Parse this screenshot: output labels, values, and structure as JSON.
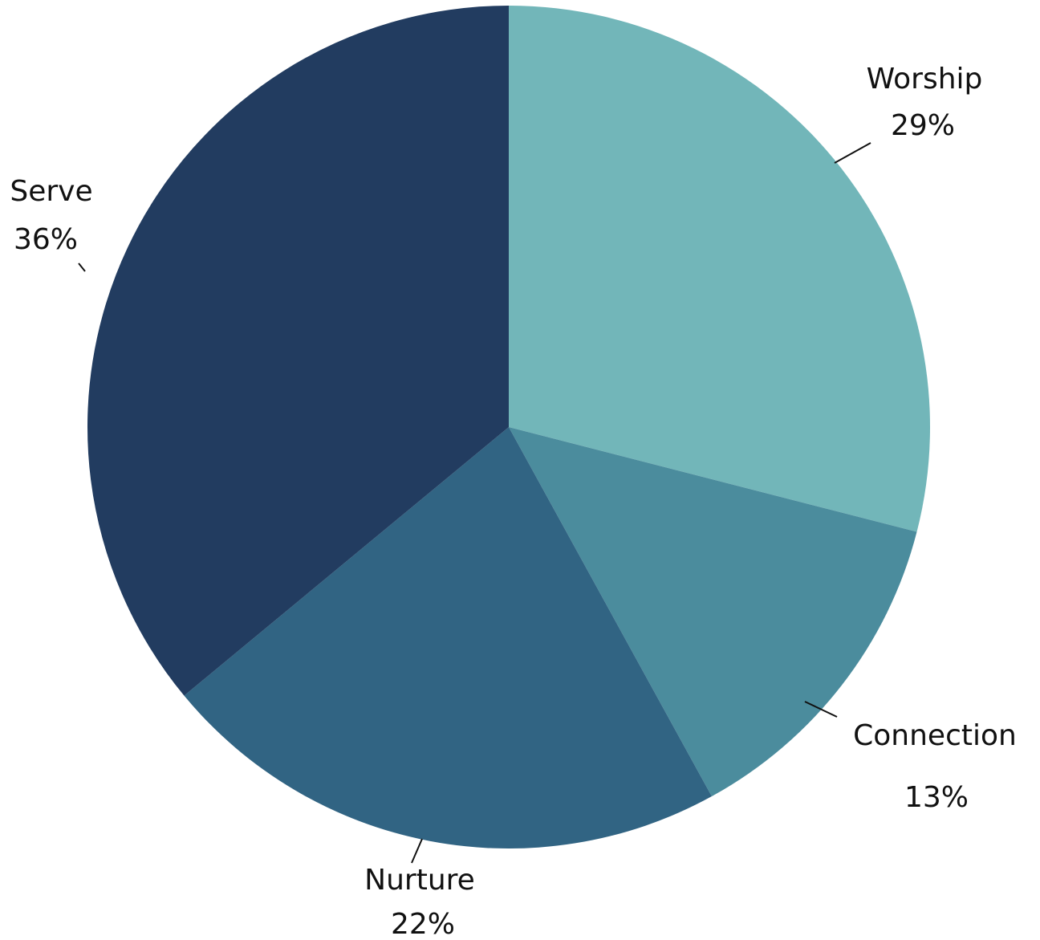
{
  "chart_data": {
    "type": "pie",
    "start_angle_deg": 0,
    "direction": "clockwise",
    "slices": [
      {
        "name": "Worship",
        "value": 29,
        "label": "29%",
        "color": "#72b6b9"
      },
      {
        "name": "Connection",
        "value": 13,
        "label": "13%",
        "color": "#4b8c9d"
      },
      {
        "name": "Nurture",
        "value": 22,
        "label": "22%",
        "color": "#316483"
      },
      {
        "name": "Serve",
        "value": 36,
        "label": "36%",
        "color": "#223c60"
      }
    ]
  }
}
